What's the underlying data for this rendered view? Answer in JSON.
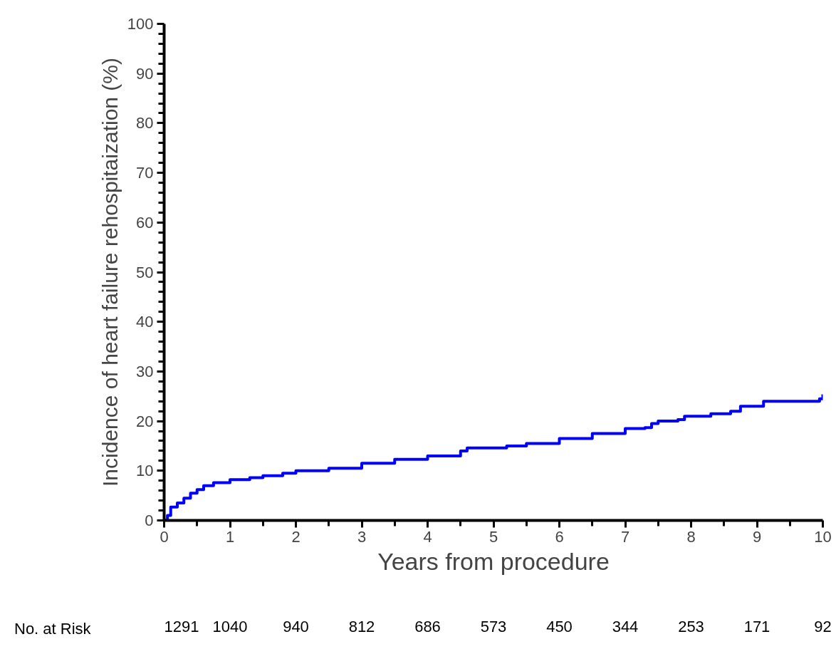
{
  "chart_data": {
    "type": "step",
    "xlabel": "Years from procedure",
    "ylabel": "Incidence of heart failure rehospitaization (%)",
    "xlim": [
      0,
      10
    ],
    "ylim": [
      0,
      100
    ],
    "xticks": [
      0,
      1,
      2,
      3,
      4,
      5,
      6,
      7,
      8,
      9,
      10
    ],
    "yticks": [
      0,
      10,
      20,
      30,
      40,
      50,
      60,
      70,
      80,
      90,
      100
    ],
    "grid": false,
    "line_style": "solid",
    "marker": "none",
    "series": [
      {
        "color": "#0000ff",
        "x": [
          0,
          0.05,
          0.1,
          0.2,
          0.3,
          0.4,
          0.5,
          0.6,
          0.75,
          1,
          1.3,
          1.5,
          1.8,
          2,
          2.5,
          3,
          3.5,
          4,
          4.5,
          4.6,
          5.2,
          5.5,
          6,
          6.5,
          7,
          7.3,
          7.4,
          7.5,
          7.8,
          7.9,
          8.3,
          8.6,
          8.75,
          9.1,
          9.95,
          10
        ],
        "values": [
          0,
          1,
          2.7,
          3.5,
          4.5,
          5.5,
          6.2,
          7,
          7.6,
          8.2,
          8.6,
          9,
          9.5,
          10,
          10.5,
          11.5,
          12.3,
          13,
          14,
          14.6,
          15,
          15.5,
          16.5,
          17.5,
          18.5,
          18.7,
          19.5,
          20,
          20.3,
          21,
          21.5,
          22,
          23,
          24,
          24.5,
          25.4
        ]
      }
    ],
    "annotations": [
      "No. at Risk",
      "1291",
      "1040",
      "940",
      "812",
      "686",
      "573",
      "450",
      "344",
      "253",
      "171",
      "92"
    ]
  }
}
